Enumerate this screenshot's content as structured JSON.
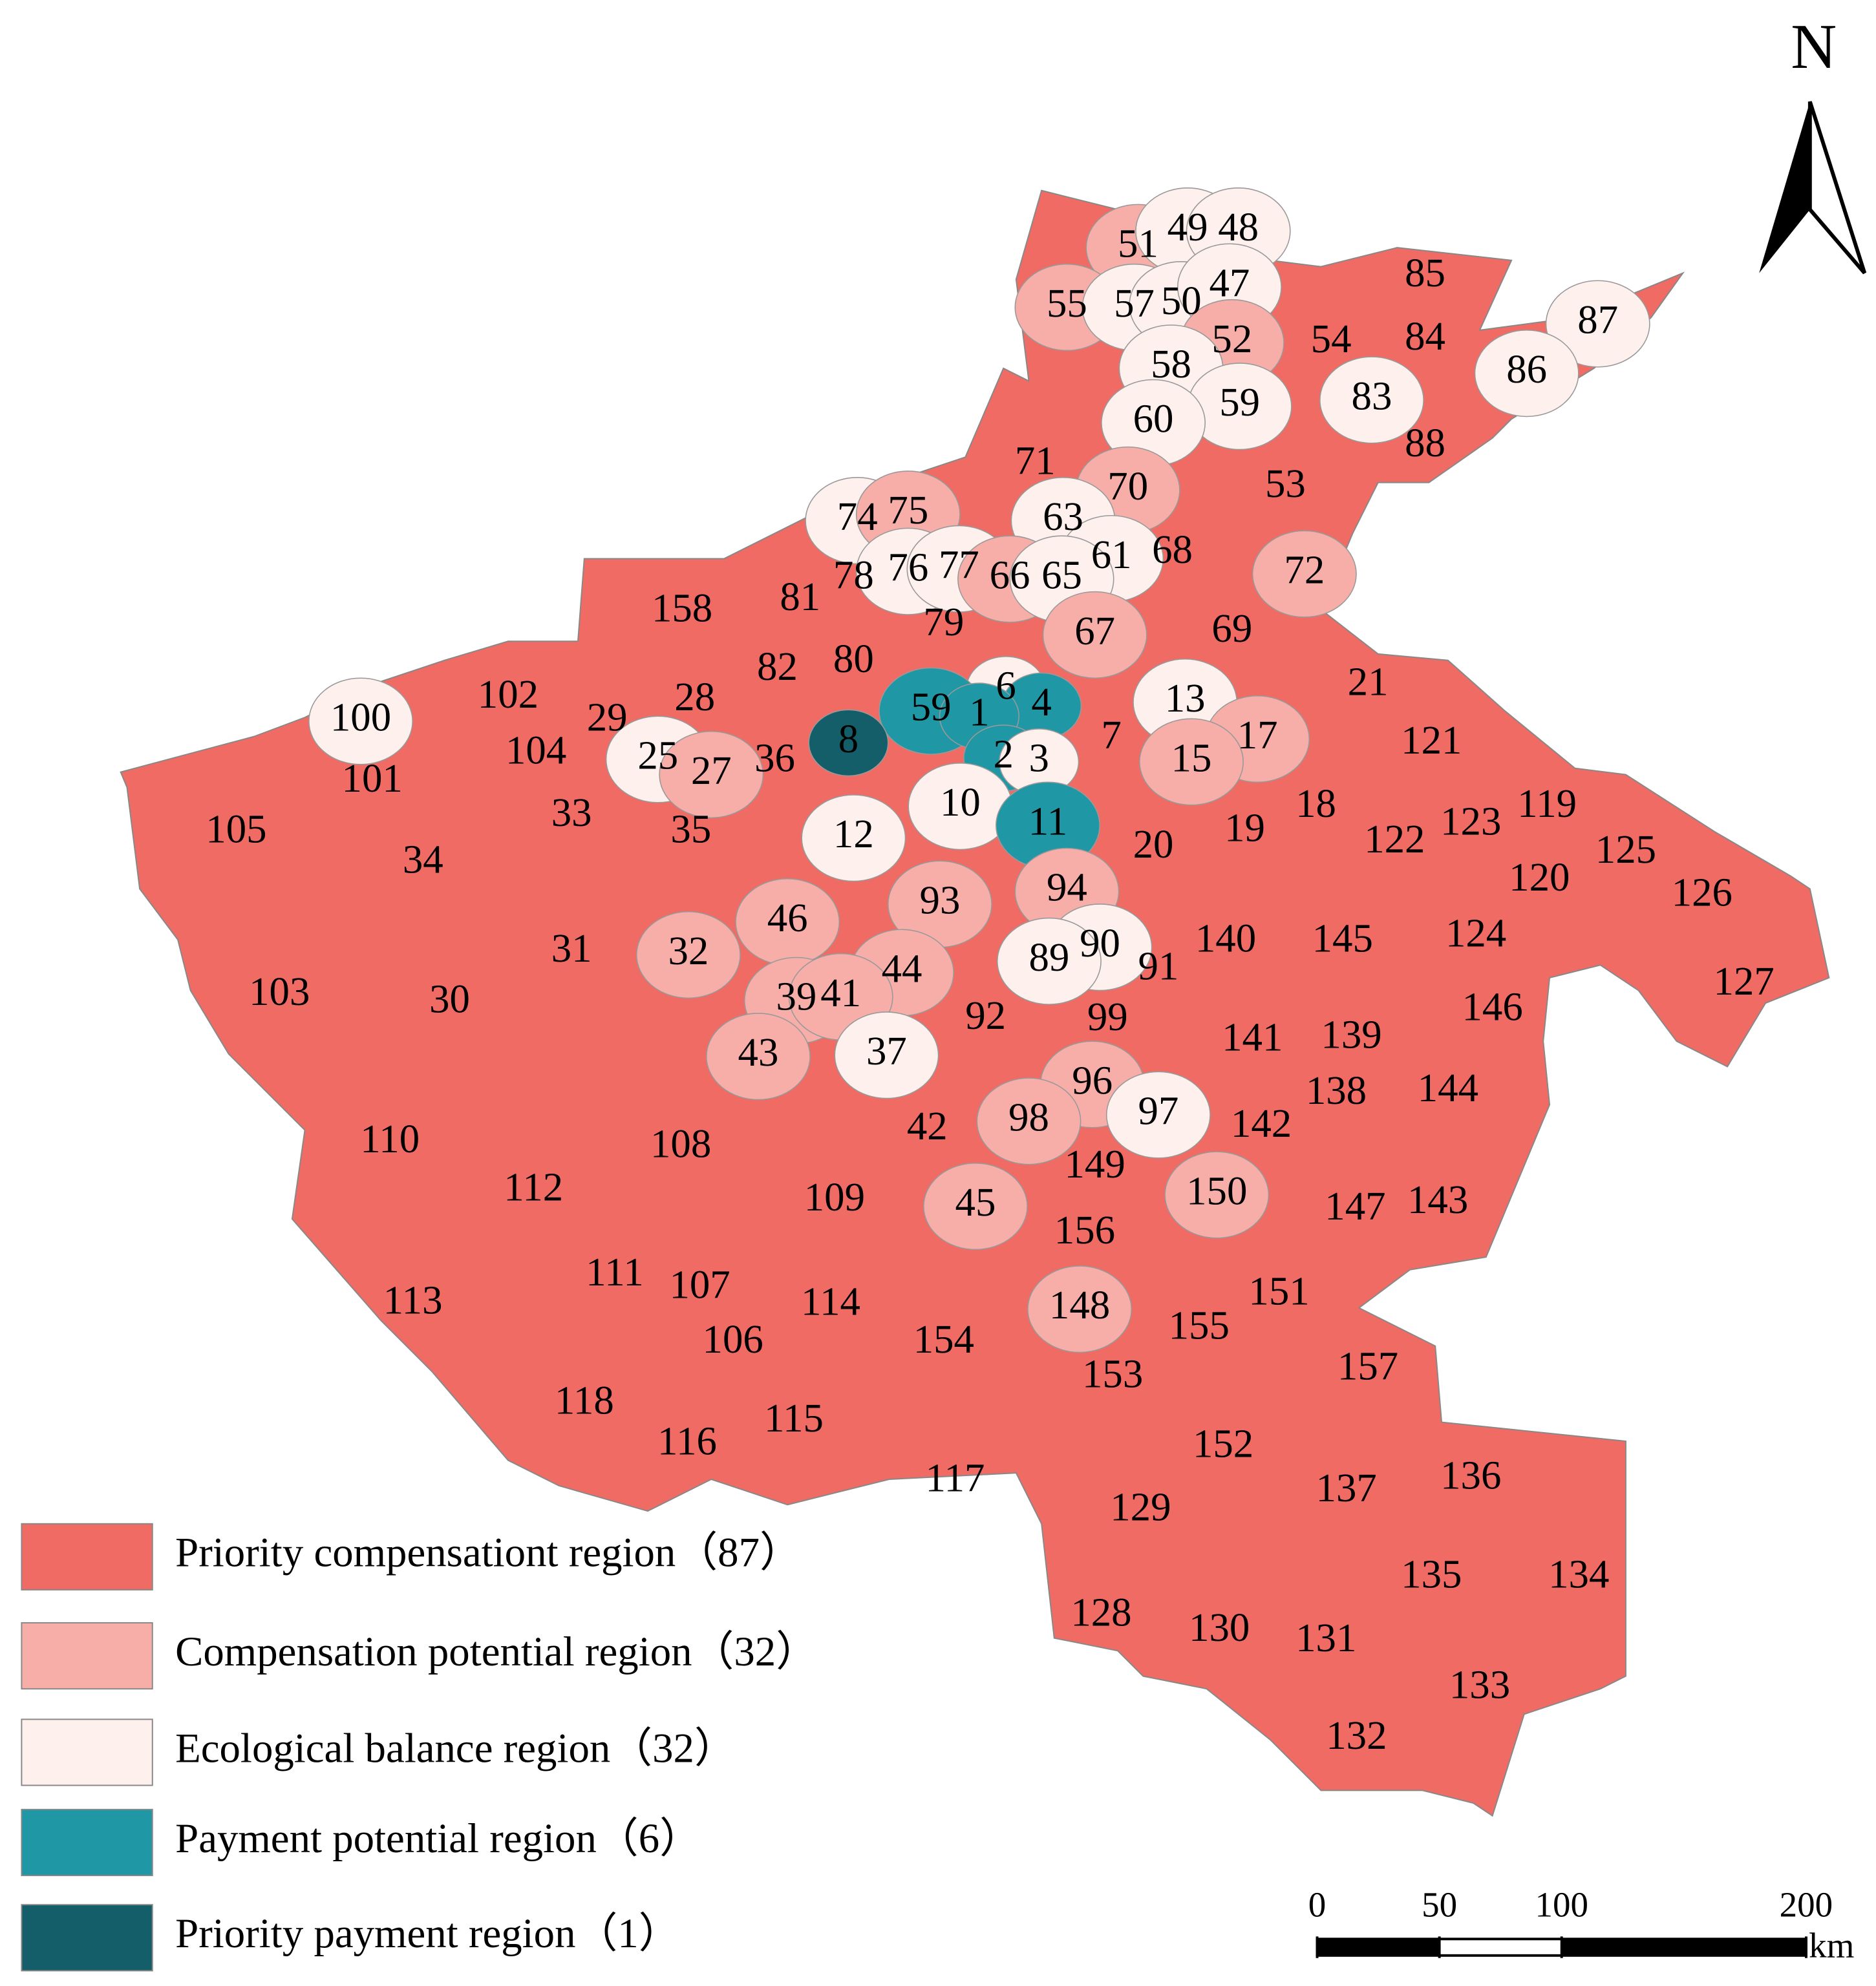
{
  "north": "N",
  "regions": [
    {
      "label": "51",
      "color": "#f8aea8"
    },
    {
      "label": "49",
      "color": "#fdf0ed"
    },
    {
      "label": "48",
      "color": "#fdf0ed"
    },
    {
      "label": "55",
      "color": "#f8aea8"
    },
    {
      "label": "57",
      "color": "#fdf0ed"
    },
    {
      "label": "50",
      "color": "#fdf0ed"
    },
    {
      "label": "47",
      "color": "#fdf0ed"
    },
    {
      "label": "52",
      "color": "#f8aea8"
    },
    {
      "label": "54",
      "color": "#ef6b64"
    },
    {
      "label": "85",
      "color": "#ef6b64"
    },
    {
      "label": "84",
      "color": "#ef6b64"
    },
    {
      "label": "87",
      "color": "#fdf0ed"
    },
    {
      "label": "86",
      "color": "#fdf0ed"
    },
    {
      "label": "83",
      "color": "#fdf0ed"
    },
    {
      "label": "58",
      "color": "#fdf0ed"
    },
    {
      "label": "59",
      "color": "#fdf0ed"
    },
    {
      "label": "60",
      "color": "#fdf0ed"
    },
    {
      "label": "88",
      "color": "#ef6b64"
    },
    {
      "label": "71",
      "color": "#ef6b64"
    },
    {
      "label": "70",
      "color": "#f8aea8"
    },
    {
      "label": "53",
      "color": "#ef6b64"
    },
    {
      "label": "74",
      "color": "#fdf0ed"
    },
    {
      "label": "75",
      "color": "#f8aea8"
    },
    {
      "label": "63",
      "color": "#fdf0ed"
    },
    {
      "label": "61",
      "color": "#fdf0ed"
    },
    {
      "label": "68",
      "color": "#ef6b64"
    },
    {
      "label": "72",
      "color": "#f8aea8"
    },
    {
      "label": "78",
      "color": "#ef6b64"
    },
    {
      "label": "76",
      "color": "#fdf0ed"
    },
    {
      "label": "77",
      "color": "#fdf0ed"
    },
    {
      "label": "66",
      "color": "#f8aea8"
    },
    {
      "label": "65",
      "color": "#fdf0ed"
    },
    {
      "label": "158",
      "color": "#ef6b64"
    },
    {
      "label": "81",
      "color": "#ef6b64"
    },
    {
      "label": "79",
      "color": "#ef6b64"
    },
    {
      "label": "67",
      "color": "#f8aea8"
    },
    {
      "label": "69",
      "color": "#ef6b64"
    },
    {
      "label": "82",
      "color": "#ef6b64"
    },
    {
      "label": "80",
      "color": "#ef6b64"
    },
    {
      "label": "28",
      "color": "#ef6b64"
    },
    {
      "label": "6",
      "color": "#fdf0ed"
    },
    {
      "label": "4",
      "color": "#1f97a5"
    },
    {
      "label": "59",
      "color": "#1f97a5"
    },
    {
      "label": "1",
      "color": "#1f97a5"
    },
    {
      "label": "21",
      "color": "#ef6b64"
    },
    {
      "label": "13",
      "color": "#fdf0ed"
    },
    {
      "label": "17",
      "color": "#f8aea8"
    },
    {
      "label": "102",
      "color": "#ef6b64"
    },
    {
      "label": "100",
      "color": "#fdf0ed"
    },
    {
      "label": "29",
      "color": "#ef6b64"
    },
    {
      "label": "8",
      "color": "#135e68"
    },
    {
      "label": "7",
      "color": "#ef6b64"
    },
    {
      "label": "104",
      "color": "#ef6b64"
    },
    {
      "label": "25",
      "color": "#fdf0ed"
    },
    {
      "label": "27",
      "color": "#f8aea8"
    },
    {
      "label": "36",
      "color": "#ef6b64"
    },
    {
      "label": "2",
      "color": "#1f97a5"
    },
    {
      "label": "3",
      "color": "#fdf0ed"
    },
    {
      "label": "15",
      "color": "#f8aea8"
    },
    {
      "label": "121",
      "color": "#ef6b64"
    },
    {
      "label": "101",
      "color": "#ef6b64"
    },
    {
      "label": "33",
      "color": "#ef6b64"
    },
    {
      "label": "10",
      "color": "#fdf0ed"
    },
    {
      "label": "11",
      "color": "#1f97a5"
    },
    {
      "label": "19",
      "color": "#ef6b64"
    },
    {
      "label": "18",
      "color": "#ef6b64"
    },
    {
      "label": "123",
      "color": "#ef6b64"
    },
    {
      "label": "119",
      "color": "#ef6b64"
    },
    {
      "label": "122",
      "color": "#ef6b64"
    },
    {
      "label": "105",
      "color": "#ef6b64"
    },
    {
      "label": "34",
      "color": "#ef6b64"
    },
    {
      "label": "35",
      "color": "#ef6b64"
    },
    {
      "label": "12",
      "color": "#fdf0ed"
    },
    {
      "label": "20",
      "color": "#ef6b64"
    },
    {
      "label": "125",
      "color": "#ef6b64"
    },
    {
      "label": "120",
      "color": "#ef6b64"
    },
    {
      "label": "126",
      "color": "#ef6b64"
    },
    {
      "label": "94",
      "color": "#f8aea8"
    },
    {
      "label": "93",
      "color": "#f8aea8"
    },
    {
      "label": "46",
      "color": "#f8aea8"
    },
    {
      "label": "140",
      "color": "#ef6b64"
    },
    {
      "label": "145",
      "color": "#ef6b64"
    },
    {
      "label": "124",
      "color": "#ef6b64"
    },
    {
      "label": "32",
      "color": "#f8aea8"
    },
    {
      "label": "31",
      "color": "#ef6b64"
    },
    {
      "label": "90",
      "color": "#fdf0ed"
    },
    {
      "label": "89",
      "color": "#fdf0ed"
    },
    {
      "label": "44",
      "color": "#f8aea8"
    },
    {
      "label": "91",
      "color": "#ef6b64"
    },
    {
      "label": "127",
      "color": "#ef6b64"
    },
    {
      "label": "103",
      "color": "#ef6b64"
    },
    {
      "label": "30",
      "color": "#ef6b64"
    },
    {
      "label": "39",
      "color": "#f8aea8"
    },
    {
      "label": "41",
      "color": "#f8aea8"
    },
    {
      "label": "92",
      "color": "#ef6b64"
    },
    {
      "label": "99",
      "color": "#ef6b64"
    },
    {
      "label": "146",
      "color": "#ef6b64"
    },
    {
      "label": "141",
      "color": "#ef6b64"
    },
    {
      "label": "139",
      "color": "#ef6b64"
    },
    {
      "label": "43",
      "color": "#f8aea8"
    },
    {
      "label": "37",
      "color": "#fdf0ed"
    },
    {
      "label": "96",
      "color": "#f8aea8"
    },
    {
      "label": "138",
      "color": "#ef6b64"
    },
    {
      "label": "144",
      "color": "#ef6b64"
    },
    {
      "label": "97",
      "color": "#fdf0ed"
    },
    {
      "label": "98",
      "color": "#f8aea8"
    },
    {
      "label": "42",
      "color": "#ef6b64"
    },
    {
      "label": "142",
      "color": "#ef6b64"
    },
    {
      "label": "110",
      "color": "#ef6b64"
    },
    {
      "label": "108",
      "color": "#ef6b64"
    },
    {
      "label": "112",
      "color": "#ef6b64"
    },
    {
      "label": "149",
      "color": "#ef6b64"
    },
    {
      "label": "150",
      "color": "#f8aea8"
    },
    {
      "label": "147",
      "color": "#ef6b64"
    },
    {
      "label": "143",
      "color": "#ef6b64"
    },
    {
      "label": "109",
      "color": "#ef6b64"
    },
    {
      "label": "45",
      "color": "#f8aea8"
    },
    {
      "label": "156",
      "color": "#ef6b64"
    },
    {
      "label": "111",
      "color": "#ef6b64"
    },
    {
      "label": "107",
      "color": "#ef6b64"
    },
    {
      "label": "113",
      "color": "#ef6b64"
    },
    {
      "label": "114",
      "color": "#ef6b64"
    },
    {
      "label": "148",
      "color": "#f8aea8"
    },
    {
      "label": "151",
      "color": "#ef6b64"
    },
    {
      "label": "155",
      "color": "#ef6b64"
    },
    {
      "label": "106",
      "color": "#ef6b64"
    },
    {
      "label": "154",
      "color": "#ef6b64"
    },
    {
      "label": "157",
      "color": "#ef6b64"
    },
    {
      "label": "153",
      "color": "#ef6b64"
    },
    {
      "label": "118",
      "color": "#ef6b64"
    },
    {
      "label": "115",
      "color": "#ef6b64"
    },
    {
      "label": "116",
      "color": "#ef6b64"
    },
    {
      "label": "152",
      "color": "#ef6b64"
    },
    {
      "label": "117",
      "color": "#ef6b64"
    },
    {
      "label": "136",
      "color": "#ef6b64"
    },
    {
      "label": "137",
      "color": "#ef6b64"
    },
    {
      "label": "129",
      "color": "#ef6b64"
    },
    {
      "label": "134",
      "color": "#ef6b64"
    },
    {
      "label": "135",
      "color": "#ef6b64"
    },
    {
      "label": "128",
      "color": "#ef6b64"
    },
    {
      "label": "130",
      "color": "#ef6b64"
    },
    {
      "label": "131",
      "color": "#ef6b64"
    },
    {
      "label": "133",
      "color": "#ef6b64"
    },
    {
      "label": "132",
      "color": "#ef6b64"
    }
  ],
  "legend": [
    {
      "label": "Priority compensationt region（87）",
      "color": "#ef6b64"
    },
    {
      "label": "Compensation potential region（32）",
      "color": "#f8aea8"
    },
    {
      "label": "Ecological balance region（32）",
      "color": "#fdf0ed"
    },
    {
      "label": "Payment potential region（6）",
      "color": "#1f97a5"
    },
    {
      "label": "Priority payment region（1）",
      "color": "#135e68"
    }
  ],
  "scale_bar": {
    "ticks": [
      0,
      50,
      100,
      200
    ],
    "unit": "km"
  }
}
